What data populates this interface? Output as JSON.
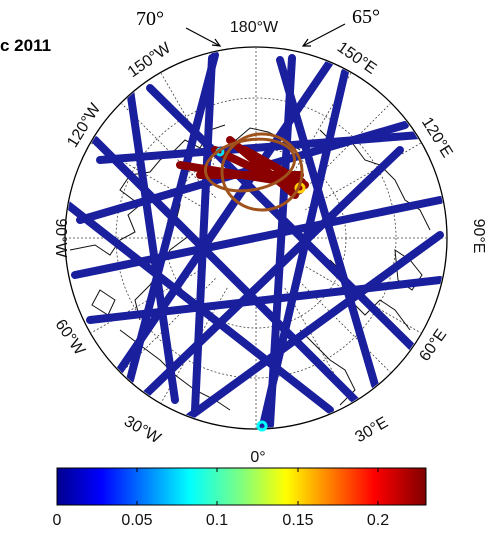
{
  "title": "c 2011",
  "annotations": {
    "left": "70°",
    "right": "65°"
  },
  "longitude_labels": {
    "top": "180°W",
    "upper_left": "150°W",
    "upper_right": "150°E",
    "left_upper": "120°W",
    "right_upper": "120°E",
    "left": "90°W",
    "right": "90°E",
    "left_lower": "60°W",
    "right_lower": "60°E",
    "lower_left": "30°W",
    "lower_right": "30°E",
    "bottom": "0°"
  },
  "colorbar": {
    "min": 0,
    "max": 0.23,
    "colormap": "jet",
    "ticks": [
      "0",
      "0.05",
      "0.1",
      "0.15",
      "0.2"
    ]
  },
  "colors": {
    "track_low": "#1a1f9e",
    "track_high": "#8b0000",
    "highlight_ellipse": "#a0521c"
  },
  "icons": [
    "arrow-icon"
  ]
}
